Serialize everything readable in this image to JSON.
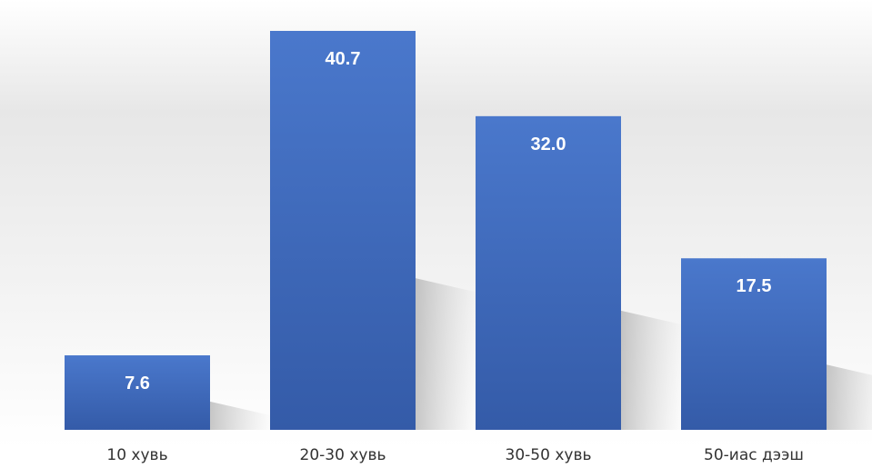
{
  "chart_data": {
    "type": "bar",
    "categories": [
      "10 хувь",
      "20-30 хувь",
      "30-50 хувь",
      "50-иас дээш"
    ],
    "values": [
      7.6,
      40.7,
      32.0,
      17.5
    ],
    "value_labels": [
      "7.6",
      "40.7",
      "32.0",
      "17.5"
    ],
    "title": "",
    "xlabel": "",
    "ylabel": "",
    "ylim": [
      0,
      44
    ],
    "grid": false,
    "legend": "none",
    "colors": {
      "bar_top": "#4A78CC",
      "bar_bottom": "#345BA8",
      "background_top": "#FFFFFF",
      "background_mid": "#E6E6E6",
      "label_text": "#333333",
      "value_text": "#FFFFFF"
    }
  }
}
